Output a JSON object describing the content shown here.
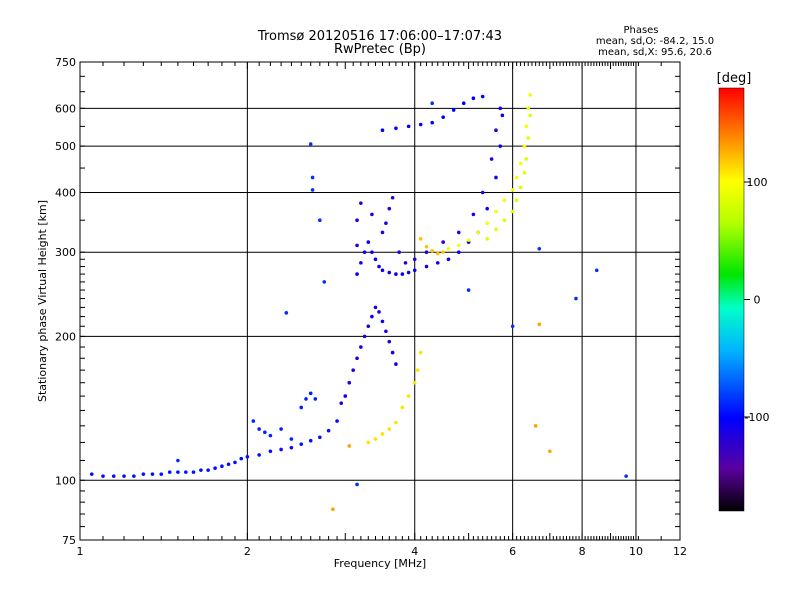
{
  "chart_data": {
    "type": "scatter",
    "title": "Tromsø 20120516 17:06:00–17:07:43",
    "subtitle": "RwPretec (Bp)",
    "stats": {
      "heading": "Phases",
      "line1": "mean, sd,O: -84.2, 15.0",
      "line2": "mean, sd,X: 95.6, 20.6"
    },
    "xlabel": "Frequency [MHz]",
    "ylabel": "Stationary phase Virtual Height [km]",
    "x_scale": "log",
    "y_scale": "log",
    "xlim": [
      1,
      12
    ],
    "ylim": [
      75,
      750
    ],
    "x_ticks": [
      1,
      2,
      4,
      6,
      8,
      10,
      12
    ],
    "x_tick_labels": [
      "1",
      "2",
      "4",
      "6",
      "8",
      "10",
      "12"
    ],
    "y_ticks": [
      75,
      100,
      200,
      300,
      400,
      500,
      600,
      750
    ],
    "y_tick_labels": [
      "75",
      "100",
      "200",
      "300",
      "400",
      "500",
      "600",
      "750"
    ],
    "grid": true,
    "colorbar": {
      "label": "[deg]",
      "range": [
        -180,
        180
      ],
      "ticks": [
        100,
        0,
        -100
      ],
      "tick_labels": [
        "100",
        "0",
        "-100"
      ]
    },
    "series": [
      {
        "phase": -95,
        "points": [
          [
            1.05,
            103
          ],
          [
            1.1,
            102
          ],
          [
            1.15,
            102
          ],
          [
            1.2,
            102
          ],
          [
            1.25,
            102
          ],
          [
            1.3,
            103
          ],
          [
            1.35,
            103
          ],
          [
            1.4,
            103
          ],
          [
            1.45,
            104
          ],
          [
            1.5,
            104
          ],
          [
            1.55,
            104
          ],
          [
            1.6,
            104
          ],
          [
            1.65,
            105
          ],
          [
            1.7,
            105
          ],
          [
            1.75,
            106
          ],
          [
            1.8,
            107
          ],
          [
            1.85,
            108
          ],
          [
            1.9,
            109
          ],
          [
            1.95,
            111
          ],
          [
            2.0,
            112
          ],
          [
            2.1,
            113
          ],
          [
            2.2,
            115
          ],
          [
            2.3,
            116
          ],
          [
            2.4,
            117
          ],
          [
            2.5,
            119
          ],
          [
            2.6,
            121
          ],
          [
            2.7,
            123
          ],
          [
            2.8,
            127
          ],
          [
            2.9,
            133
          ]
        ]
      },
      {
        "phase": -90,
        "points": [
          [
            2.05,
            133
          ],
          [
            2.1,
            128
          ],
          [
            2.15,
            126
          ],
          [
            2.2,
            124
          ],
          [
            2.3,
            128
          ],
          [
            2.4,
            122
          ],
          [
            2.5,
            142
          ],
          [
            2.55,
            148
          ],
          [
            2.6,
            152
          ],
          [
            2.65,
            148
          ]
        ]
      },
      {
        "phase": -110,
        "points": [
          [
            2.95,
            145
          ],
          [
            3.0,
            150
          ],
          [
            3.05,
            160
          ],
          [
            3.1,
            170
          ],
          [
            3.15,
            180
          ],
          [
            3.2,
            190
          ],
          [
            3.25,
            200
          ],
          [
            3.3,
            210
          ],
          [
            3.35,
            220
          ],
          [
            3.4,
            230
          ],
          [
            3.45,
            225
          ],
          [
            3.5,
            215
          ],
          [
            3.55,
            205
          ],
          [
            3.6,
            195
          ],
          [
            3.65,
            185
          ],
          [
            3.7,
            175
          ]
        ]
      },
      {
        "phase": -105,
        "points": [
          [
            3.15,
            270
          ],
          [
            3.2,
            285
          ],
          [
            3.25,
            300
          ],
          [
            3.3,
            315
          ],
          [
            3.35,
            300
          ],
          [
            3.4,
            290
          ],
          [
            3.45,
            280
          ],
          [
            3.5,
            275
          ],
          [
            3.6,
            272
          ],
          [
            3.7,
            270
          ],
          [
            3.8,
            270
          ],
          [
            3.9,
            272
          ],
          [
            4.0,
            275
          ],
          [
            4.2,
            280
          ],
          [
            4.4,
            285
          ],
          [
            4.6,
            290
          ],
          [
            4.8,
            300
          ],
          [
            5.0,
            315
          ],
          [
            5.2,
            330
          ],
          [
            5.4,
            370
          ],
          [
            5.6,
            430
          ],
          [
            5.7,
            500
          ],
          [
            5.75,
            580
          ]
        ]
      },
      {
        "phase": -115,
        "points": [
          [
            3.15,
            310
          ],
          [
            3.15,
            350
          ],
          [
            3.2,
            380
          ],
          [
            3.35,
            360
          ],
          [
            3.5,
            330
          ],
          [
            3.55,
            345
          ],
          [
            3.6,
            370
          ],
          [
            3.65,
            390
          ],
          [
            3.75,
            300
          ],
          [
            3.85,
            285
          ],
          [
            4.0,
            290
          ],
          [
            4.2,
            300
          ],
          [
            4.5,
            315
          ],
          [
            4.8,
            330
          ],
          [
            5.1,
            360
          ],
          [
            5.3,
            400
          ],
          [
            5.5,
            470
          ],
          [
            5.6,
            540
          ],
          [
            5.7,
            600
          ]
        ]
      },
      {
        "phase": -100,
        "points": [
          [
            3.5,
            540
          ],
          [
            3.7,
            545
          ],
          [
            3.9,
            550
          ],
          [
            4.1,
            555
          ],
          [
            4.3,
            560
          ],
          [
            4.5,
            575
          ],
          [
            4.7,
            595
          ],
          [
            4.9,
            615
          ],
          [
            5.1,
            630
          ],
          [
            5.3,
            635
          ]
        ]
      },
      {
        "phase": 110,
        "points": [
          [
            3.3,
            120
          ],
          [
            3.4,
            122
          ],
          [
            3.5,
            125
          ],
          [
            3.6,
            128
          ],
          [
            3.7,
            132
          ],
          [
            3.8,
            142
          ],
          [
            3.9,
            150
          ],
          [
            4.0,
            160
          ],
          [
            4.05,
            170
          ],
          [
            4.1,
            185
          ]
        ]
      },
      {
        "phase": 120,
        "points": [
          [
            4.1,
            320
          ],
          [
            4.2,
            308
          ],
          [
            4.3,
            302
          ],
          [
            4.4,
            298
          ],
          [
            4.5,
            300
          ]
        ]
      },
      {
        "phase": 95,
        "points": [
          [
            4.6,
            305
          ],
          [
            4.8,
            310
          ],
          [
            5.0,
            318
          ],
          [
            5.2,
            330
          ],
          [
            5.4,
            345
          ],
          [
            5.6,
            365
          ],
          [
            5.8,
            385
          ],
          [
            6.0,
            405
          ],
          [
            6.1,
            430
          ],
          [
            6.2,
            460
          ],
          [
            6.3,
            500
          ],
          [
            6.35,
            550
          ],
          [
            6.4,
            600
          ],
          [
            6.45,
            640
          ]
        ]
      },
      {
        "phase": 85,
        "points": [
          [
            5.4,
            320
          ],
          [
            5.6,
            335
          ],
          [
            5.8,
            350
          ],
          [
            6.0,
            365
          ],
          [
            6.1,
            385
          ],
          [
            6.2,
            410
          ],
          [
            6.3,
            440
          ],
          [
            6.35,
            470
          ],
          [
            6.4,
            520
          ],
          [
            6.45,
            580
          ]
        ]
      },
      {
        "phase": -85,
        "points": [
          [
            1.5,
            110
          ],
          [
            2.35,
            224
          ],
          [
            2.6,
            505
          ],
          [
            2.62,
            430
          ],
          [
            2.62,
            405
          ],
          [
            2.7,
            350
          ],
          [
            2.75,
            260
          ],
          [
            3.15,
            98
          ],
          [
            4.3,
            615
          ],
          [
            5.0,
            250
          ],
          [
            6.0,
            210
          ],
          [
            6.7,
            305
          ],
          [
            7.8,
            240
          ],
          [
            8.5,
            275
          ],
          [
            9.6,
            102
          ]
        ]
      },
      {
        "phase": 130,
        "points": [
          [
            2.85,
            87
          ],
          [
            3.05,
            118
          ],
          [
            6.6,
            130
          ],
          [
            6.7,
            212
          ],
          [
            7.0,
            115
          ]
        ]
      }
    ]
  }
}
